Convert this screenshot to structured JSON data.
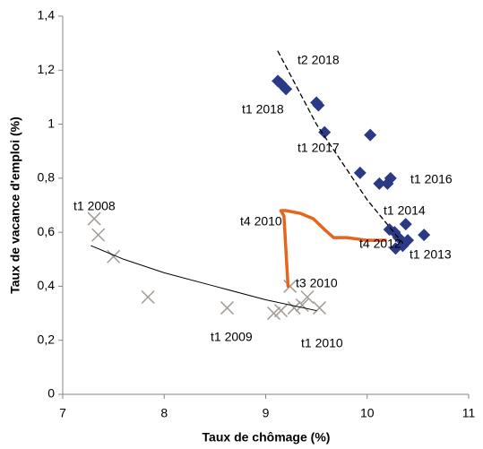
{
  "chart_data": {
    "type": "scatter",
    "xlabel": "Taux de chômage (%)",
    "ylabel": "Taux de vacance d'emploi (%)",
    "xlim": [
      7,
      11
    ],
    "xticks": [
      7,
      8,
      9,
      10,
      11
    ],
    "ylim": [
      0,
      1.4
    ],
    "yticks": [
      0,
      {
        "value": 0.2,
        "label": "0,2"
      },
      {
        "value": 0.4,
        "label": "0,4"
      },
      {
        "value": 0.6,
        "label": "0,6"
      },
      {
        "value": 0.8,
        "label": "0,8"
      },
      1,
      {
        "value": 1.2,
        "label": "1,2"
      },
      {
        "value": 1.4,
        "label": "1,4"
      }
    ],
    "grid": false,
    "series": [
      {
        "marker": "cross",
        "color": "#a39a93",
        "x": [
          7.31,
          7.35,
          7.5,
          7.84,
          8.62,
          9.08,
          9.15,
          9.24,
          9.28,
          9.36,
          9.41,
          9.53
        ],
        "values": [
          0.65,
          0.59,
          0.51,
          0.36,
          0.32,
          0.3,
          0.31,
          0.4,
          0.32,
          0.33,
          0.36,
          0.32
        ]
      },
      {
        "marker": "diamond",
        "color": "#2b3a86",
        "x": [
          9.12,
          9.15,
          9.2,
          9.5,
          9.52,
          9.58,
          10.03,
          9.93,
          10.12,
          10.2,
          10.23,
          10.22,
          10.27,
          10.31,
          10.38,
          10.28,
          10.4,
          10.56,
          10.35
        ],
        "values": [
          1.16,
          1.15,
          1.13,
          1.08,
          1.07,
          0.97,
          0.96,
          0.82,
          0.78,
          0.78,
          0.8,
          0.61,
          0.6,
          0.58,
          0.63,
          0.54,
          0.57,
          0.59,
          0.55
        ]
      },
      {
        "marker": "line",
        "color": "#e8631c",
        "width": 3.5,
        "x": [
          9.22,
          9.18,
          9.15,
          9.2,
          9.34,
          9.47,
          9.58,
          9.67,
          9.8,
          10.0,
          10.18
        ],
        "values": [
          0.4,
          0.66,
          0.68,
          0.68,
          0.67,
          0.65,
          0.61,
          0.58,
          0.58,
          0.57,
          0.57
        ]
      },
      {
        "marker": "line",
        "color": "#000000",
        "width": 1,
        "x": [
          7.28,
          7.6,
          8.0,
          8.5,
          9.0,
          9.5
        ],
        "values": [
          0.55,
          0.5,
          0.45,
          0.4,
          0.35,
          0.31
        ]
      },
      {
        "marker": "line",
        "color": "#000000",
        "width": 1.3,
        "dash": true,
        "x": [
          9.12,
          9.5,
          10.0,
          10.35
        ],
        "values": [
          1.27,
          1.0,
          0.72,
          0.56
        ]
      }
    ],
    "annotations": [
      "t2 2018",
      "t1 2018",
      "t1 2017",
      "t1 2016",
      "t1 2014",
      "t4 2012",
      "t1 2013",
      "t1 2008",
      "t4 2010",
      "t3 2010",
      "t1 2009",
      "t1 2010"
    ]
  }
}
